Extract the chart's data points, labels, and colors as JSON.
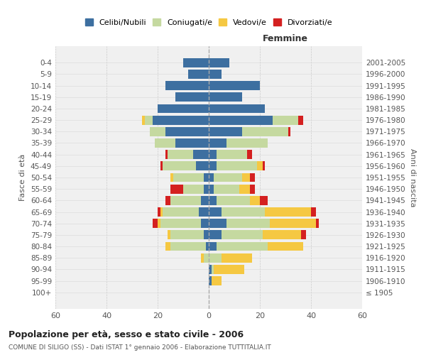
{
  "age_groups": [
    "100+",
    "95-99",
    "90-94",
    "85-89",
    "80-84",
    "75-79",
    "70-74",
    "65-69",
    "60-64",
    "55-59",
    "50-54",
    "45-49",
    "40-44",
    "35-39",
    "30-34",
    "25-29",
    "20-24",
    "15-19",
    "10-14",
    "5-9",
    "0-4"
  ],
  "birth_years": [
    "≤ 1905",
    "1906-1910",
    "1911-1915",
    "1916-1920",
    "1921-1925",
    "1926-1930",
    "1931-1935",
    "1936-1940",
    "1941-1945",
    "1946-1950",
    "1951-1955",
    "1956-1960",
    "1961-1965",
    "1966-1970",
    "1971-1975",
    "1976-1980",
    "1981-1985",
    "1986-1990",
    "1991-1995",
    "1996-2000",
    "2001-2005"
  ],
  "male": {
    "celibi": [
      0,
      0,
      0,
      0,
      1,
      2,
      3,
      4,
      3,
      2,
      2,
      5,
      6,
      13,
      17,
      22,
      20,
      13,
      17,
      8,
      10
    ],
    "coniugati": [
      0,
      0,
      0,
      2,
      14,
      13,
      16,
      14,
      12,
      8,
      12,
      13,
      10,
      8,
      6,
      3,
      0,
      0,
      0,
      0,
      0
    ],
    "vedovi": [
      0,
      0,
      0,
      1,
      2,
      1,
      1,
      1,
      0,
      0,
      1,
      0,
      0,
      0,
      0,
      1,
      0,
      0,
      0,
      0,
      0
    ],
    "divorziati": [
      0,
      0,
      0,
      0,
      0,
      0,
      2,
      1,
      2,
      5,
      0,
      1,
      1,
      0,
      0,
      0,
      0,
      0,
      0,
      0,
      0
    ]
  },
  "female": {
    "nubili": [
      0,
      1,
      1,
      0,
      3,
      5,
      7,
      5,
      3,
      2,
      2,
      3,
      3,
      7,
      13,
      25,
      22,
      13,
      20,
      5,
      8
    ],
    "coniugate": [
      0,
      0,
      1,
      5,
      20,
      16,
      17,
      17,
      13,
      10,
      11,
      16,
      12,
      16,
      18,
      10,
      0,
      0,
      0,
      0,
      0
    ],
    "vedove": [
      0,
      4,
      12,
      12,
      14,
      15,
      18,
      18,
      4,
      4,
      3,
      2,
      0,
      0,
      0,
      0,
      0,
      0,
      0,
      0,
      0
    ],
    "divorziate": [
      0,
      0,
      0,
      0,
      0,
      2,
      1,
      2,
      3,
      2,
      2,
      1,
      2,
      0,
      1,
      2,
      0,
      0,
      0,
      0,
      0
    ]
  },
  "colors": {
    "celibi": "#3d6fa0",
    "coniugati": "#c5d9a0",
    "vedovi": "#f5c842",
    "divorziati": "#d42020"
  },
  "xlim": 60,
  "title": "Popolazione per età, sesso e stato civile - 2006",
  "subtitle": "COMUNE DI SILIGO (SS) - Dati ISTAT 1° gennaio 2006 - Elaborazione TUTTITALIA.IT",
  "ylabel_left": "Fasce di età",
  "ylabel_right": "Anni di nascita",
  "xlabel_female": "Femmine"
}
